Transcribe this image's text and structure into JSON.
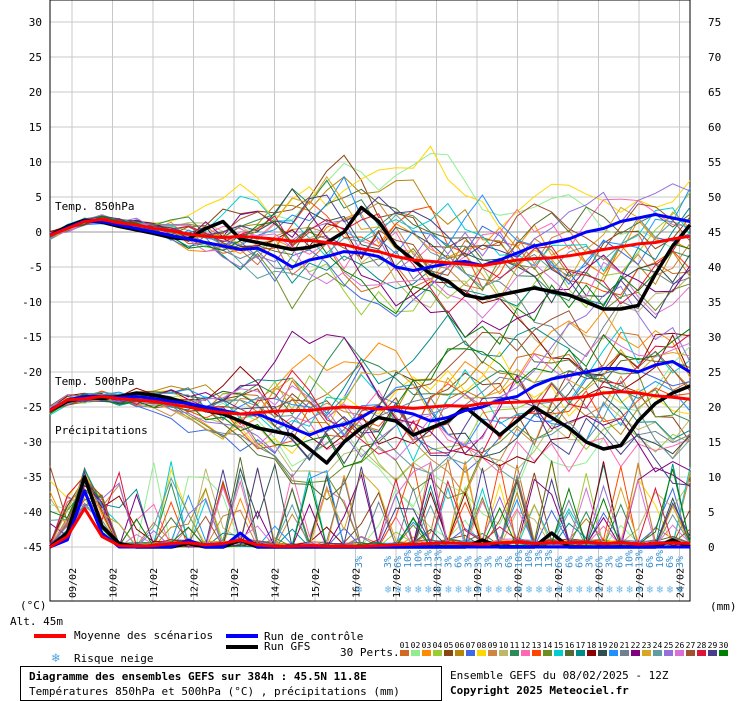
{
  "chart_data": {
    "type": "line",
    "title": "Diagramme des ensembles GEFS sur 384h : 45.5N 11.8E",
    "subtitle": "Températures 850hPa et 500hPa (°C) , précipitations (mm)",
    "run_info": "Ensemble GEFS du 08/02/2025 - 12Z",
    "copyright": "Copyright 2025 Meteociel.fr",
    "altitude": "Alt. 45m",
    "left_axis": {
      "unit": "(°C)",
      "ticks": [
        "30",
        "25",
        "20",
        "15",
        "10",
        "5",
        "0",
        "-5",
        "-10",
        "-15",
        "-20",
        "-25",
        "-30",
        "-35",
        "-40",
        "-45"
      ],
      "range": [
        -45,
        30
      ]
    },
    "right_axis": {
      "unit": "(mm)",
      "ticks": [
        "75",
        "70",
        "65",
        "60",
        "55",
        "50",
        "45",
        "40",
        "35",
        "30",
        "25",
        "20",
        "15",
        "10",
        "5",
        "0"
      ],
      "range": [
        0,
        75
      ]
    },
    "dates": [
      "09/02",
      "10/02",
      "11/02",
      "12/02",
      "13/02",
      "14/02",
      "15/02",
      "16/02",
      "17/02",
      "18/02",
      "19/02",
      "20/02",
      "21/02",
      "22/02",
      "23/02",
      "24/02"
    ],
    "panel_labels": {
      "t850": "Temp. 850hPa",
      "t500": "Temp. 500hPa",
      "precip": "Précipitations"
    },
    "series_t850": [
      {
        "name": "Moyenne des scénarios",
        "color": "#ff0000",
        "values": [
          -0.5,
          0.5,
          1.5,
          1.8,
          1.3,
          1.0,
          0.5,
          0.2,
          -0.3,
          -0.6,
          -0.8,
          -0.6,
          -0.8,
          -1.0,
          -1.3,
          -1.2,
          -1.5,
          -1.8,
          -2.4,
          -2.8,
          -3.5,
          -4.0,
          -4.2,
          -4.4,
          -4.6,
          -4.8,
          -4.4,
          -4.0,
          -3.8,
          -3.7,
          -3.4,
          -3.0,
          -2.5,
          -2.1,
          -1.7,
          -1.5,
          -1.0,
          -0.6
        ]
      },
      {
        "name": "Run de contrôle",
        "color": "#0000ff",
        "values": [
          -0.5,
          0.6,
          1.6,
          1.5,
          1.0,
          0.5,
          0.0,
          -0.5,
          -1.0,
          -1.5,
          -2.0,
          -2.5,
          -2.3,
          -3.5,
          -5.0,
          -4.0,
          -3.5,
          -2.8,
          -3.0,
          -3.5,
          -5.0,
          -5.5,
          -5.0,
          -4.5,
          -4.2,
          -4.8,
          -4.0,
          -3.0,
          -2.0,
          -1.5,
          -1.0,
          0.0,
          0.5,
          1.5,
          2.0,
          2.5,
          2.0,
          1.5
        ]
      },
      {
        "name": "Run GFS",
        "color": "#000000",
        "values": [
          -0.5,
          0.8,
          1.7,
          1.4,
          0.8,
          0.3,
          -0.2,
          -0.8,
          -1.0,
          0.5,
          1.5,
          -1.0,
          -1.5,
          -2.0,
          -2.5,
          -2.2,
          -1.5,
          0.0,
          3.5,
          1.5,
          -2.0,
          -4.0,
          -6.0,
          -7.0,
          -9.0,
          -9.5,
          -9.0,
          -8.5,
          -8.0,
          -8.5,
          -9.0,
          -10.0,
          -11.0,
          -11.0,
          -10.5,
          -6.0,
          -2.0,
          1.0
        ]
      }
    ],
    "series_t500": [
      {
        "name": "Moyenne des scénarios",
        "color": "#ff0000",
        "values": [
          -25.5,
          -24.0,
          -23.8,
          -23.5,
          -23.8,
          -24.0,
          -24.2,
          -24.6,
          -25.0,
          -25.5,
          -25.8,
          -26.0,
          -25.8,
          -25.6,
          -25.5,
          -25.5,
          -25.2,
          -25.0,
          -25.1,
          -25.3,
          -25.0,
          -25.2,
          -25.0,
          -24.8,
          -24.9,
          -24.5,
          -24.4,
          -24.3,
          -24.2,
          -24.0,
          -23.8,
          -23.5,
          -23.0,
          -22.8,
          -23.0,
          -23.4,
          -23.6,
          -23.9
        ]
      },
      {
        "name": "Run de contrôle",
        "color": "#0000ff",
        "values": [
          -25.5,
          -24.0,
          -23.5,
          -23.5,
          -23.6,
          -23.5,
          -23.8,
          -24.2,
          -24.5,
          -25.0,
          -25.5,
          -26.0,
          -26.0,
          -27.0,
          -28.0,
          -29.0,
          -28.0,
          -27.5,
          -26.5,
          -25.0,
          -25.5,
          -26.0,
          -27.0,
          -26.5,
          -25.5,
          -25.0,
          -24.0,
          -23.5,
          -22.0,
          -21.0,
          -20.5,
          -20.0,
          -19.5,
          -19.5,
          -20.0,
          -19.0,
          -18.5,
          -20.0
        ]
      },
      {
        "name": "Run GFS",
        "color": "#000000",
        "values": [
          -25.5,
          -24.2,
          -23.6,
          -23.8,
          -23.5,
          -23.0,
          -23.3,
          -23.8,
          -24.5,
          -25.5,
          -26.0,
          -27.0,
          -28.0,
          -28.5,
          -29.0,
          -31.0,
          -33.0,
          -30.0,
          -28.0,
          -26.5,
          -27.0,
          -29.0,
          -28.0,
          -27.0,
          -25.0,
          -27.0,
          -29.0,
          -27.0,
          -25.0,
          -26.5,
          -28.0,
          -30.0,
          -31.0,
          -30.5,
          -27.0,
          -24.5,
          -23.0,
          -22.0
        ]
      }
    ],
    "series_precip_mm": [
      {
        "name": "Moyenne des scénarios",
        "color": "#ff0000",
        "values": [
          0,
          1.5,
          5.5,
          1.5,
          0.2,
          0.1,
          0.2,
          0.5,
          0.6,
          0.3,
          0.5,
          1.0,
          0.3,
          0.1,
          0.1,
          0.2,
          0.1,
          0.1,
          0.1,
          0.2,
          0.3,
          0.4,
          0.5,
          0.6,
          0.5,
          0.4,
          0.6,
          0.7,
          0.5,
          0.6,
          0.6,
          0.7,
          0.5,
          0.6,
          0.4,
          0.5,
          0.6,
          0.5
        ]
      },
      {
        "name": "Run de contrôle",
        "color": "#0000ff",
        "values": [
          0,
          1,
          8,
          2,
          0,
          0,
          0,
          0,
          1,
          0,
          0,
          2,
          0,
          0,
          0,
          0,
          0,
          0,
          0,
          0,
          0,
          0,
          0,
          0,
          0,
          0,
          0,
          0,
          0,
          0,
          0,
          0,
          0,
          0,
          0,
          0,
          0,
          0
        ]
      },
      {
        "name": "Run GFS",
        "color": "#000000",
        "values": [
          0,
          2,
          10,
          3,
          0.5,
          0,
          0,
          0,
          0.5,
          0,
          0,
          1,
          0,
          0,
          0,
          0,
          0,
          0,
          0,
          0,
          0,
          0,
          0,
          0,
          0,
          1,
          0,
          0,
          0,
          2,
          0,
          0,
          0,
          0,
          0,
          0,
          1,
          0
        ]
      }
    ],
    "snow_risk": [
      "3%",
      "3%",
      "3%",
      "6%",
      "10%",
      "10%",
      "13%",
      "13%",
      "3%",
      "6%",
      "3%",
      "3%",
      "3%",
      "3%",
      "6%",
      "10%",
      "10%",
      "13%",
      "13%",
      "6%",
      "6%",
      "6%",
      "3%",
      "6%",
      "3%",
      "6%",
      "10%",
      "13%",
      "6%",
      "10%",
      "6%",
      "3%"
    ],
    "perturbation_labels": [
      "01",
      "02",
      "03",
      "04",
      "05",
      "06",
      "07",
      "08",
      "09",
      "10",
      "11",
      "12",
      "13",
      "14",
      "15",
      "16",
      "17",
      "18",
      "19",
      "20",
      "21",
      "22",
      "23",
      "24",
      "25",
      "26",
      "27",
      "28",
      "29",
      "30"
    ],
    "perturbation_colors": [
      "#d2691e",
      "#90ee90",
      "#ff8c00",
      "#9acd32",
      "#8b4513",
      "#b8860b",
      "#4169e1",
      "#ffd700",
      "#cd853f",
      "#bdb76b",
      "#2e8b57",
      "#ff69b4",
      "#ff4500",
      "#6b8e23",
      "#00ced1",
      "#556b2f",
      "#008b8b",
      "#8b0000",
      "#2f4f4f",
      "#1e90ff",
      "#708090",
      "#800080",
      "#daa520",
      "#5f9ea0",
      "#9370db",
      "#da70d6",
      "#a0522d",
      "#dc143c",
      "#483d8b",
      "#008000"
    ]
  },
  "legend": {
    "mean_label": "Moyenne des scénarios",
    "control_label": "Run de contrôle",
    "gfs_label": "Run GFS",
    "snow_label": "Risque neige",
    "perts_label": "30 Perts."
  }
}
